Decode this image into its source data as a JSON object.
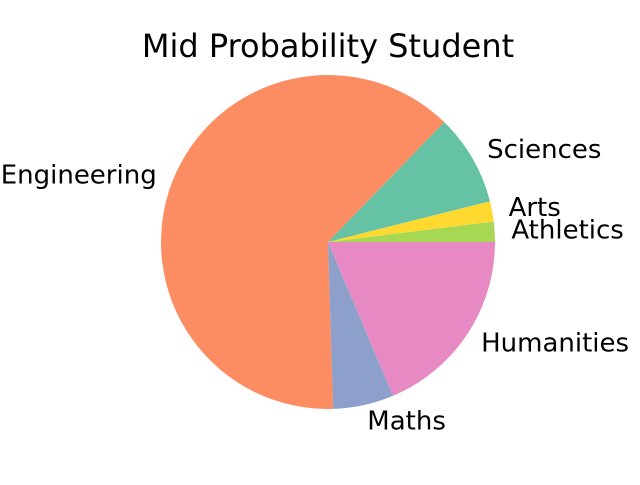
{
  "chart_data": {
    "type": "pie",
    "title": "Mid Probability Student",
    "start_angle_deg": 0,
    "direction": "counterclockwise",
    "slices": [
      {
        "label": "Athletics",
        "value": 2,
        "color": "#a6d854"
      },
      {
        "label": "Arts",
        "value": 2,
        "color": "#ffd92f"
      },
      {
        "label": "Sciences",
        "value": 9,
        "color": "#66c2a5"
      },
      {
        "label": "Engineering",
        "value": 64,
        "color": "#fc8d62"
      },
      {
        "label": "Maths",
        "value": 6,
        "color": "#8da0cb"
      },
      {
        "label": "Humanities",
        "value": 19,
        "color": "#e78ac3"
      }
    ]
  }
}
